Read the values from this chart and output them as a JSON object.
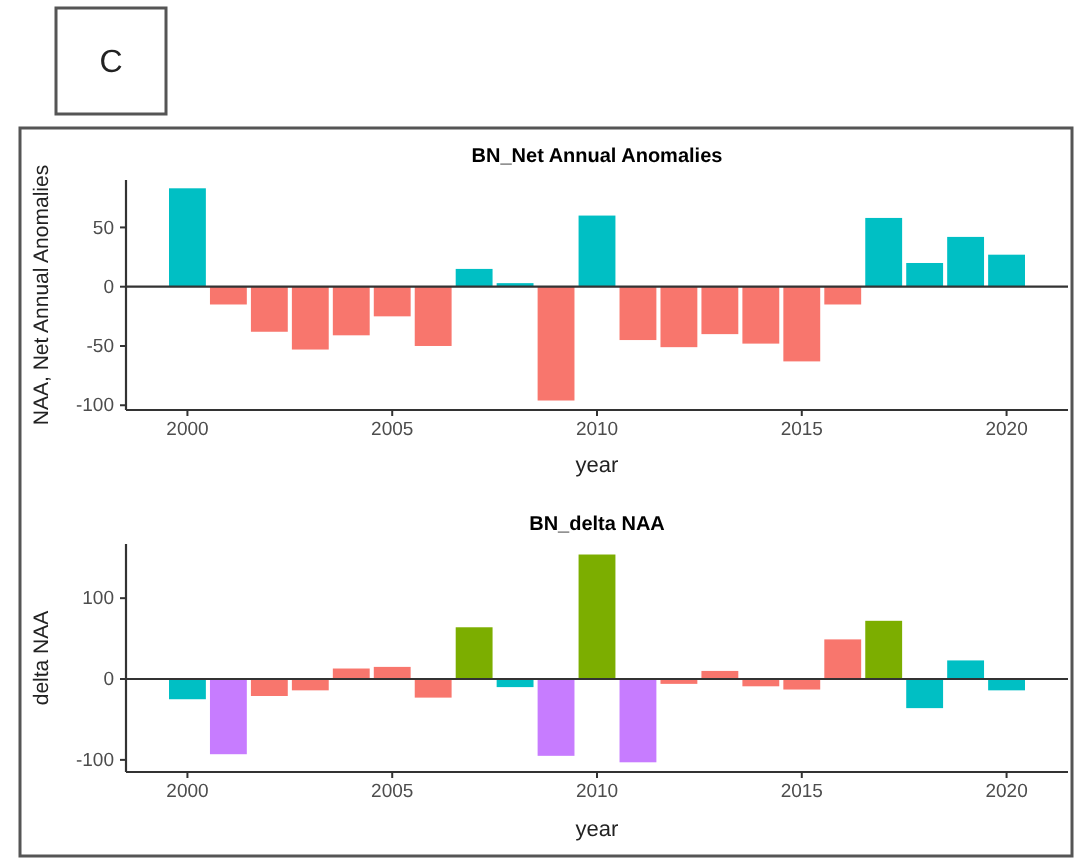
{
  "chart_data": [
    {
      "type": "bar",
      "title": "BN_Net Annual Anomalies",
      "xlabel": "year",
      "ylabel": "NAA, Net Annual Anomalies",
      "annotations": [
        "C"
      ],
      "x": [
        2000,
        2001,
        2002,
        2003,
        2004,
        2005,
        2006,
        2007,
        2008,
        2009,
        2010,
        2011,
        2012,
        2013,
        2014,
        2015,
        2016,
        2017,
        2018,
        2019,
        2020
      ],
      "values": [
        83,
        -15,
        -38,
        -53,
        -41,
        -25,
        -50,
        15,
        3,
        -96,
        60,
        -45,
        -51,
        -40,
        -48,
        -63,
        -15,
        58,
        20,
        42,
        27
      ],
      "colors": [
        "#00bfc4",
        "#f8766d",
        "#f8766d",
        "#f8766d",
        "#f8766d",
        "#f8766d",
        "#f8766d",
        "#00bfc4",
        "#00bfc4",
        "#f8766d",
        "#00bfc4",
        "#f8766d",
        "#f8766d",
        "#f8766d",
        "#f8766d",
        "#f8766d",
        "#f8766d",
        "#00bfc4",
        "#00bfc4",
        "#00bfc4",
        "#00bfc4"
      ],
      "xlim": [
        1998.5,
        2021.5
      ],
      "ylim": [
        -104,
        90
      ],
      "xticks": [
        2000,
        2005,
        2010,
        2015,
        2020
      ],
      "yticks": [
        -100,
        -50,
        0,
        50
      ],
      "ref_lines": [
        {
          "axis": "y",
          "value": 0,
          "color": "#333333"
        }
      ]
    },
    {
      "type": "bar",
      "title": "BN_delta NAA",
      "xlabel": "year",
      "ylabel": "delta NAA",
      "x": [
        2000,
        2001,
        2002,
        2003,
        2004,
        2005,
        2006,
        2007,
        2008,
        2009,
        2010,
        2011,
        2012,
        2013,
        2014,
        2015,
        2016,
        2017,
        2018,
        2019,
        2020
      ],
      "values": [
        -25,
        -93,
        -21,
        -14,
        13,
        15,
        -23,
        64,
        -10,
        -95,
        154,
        -103,
        -6,
        10,
        -9,
        -13,
        49,
        72,
        -36,
        23,
        -14
      ],
      "colors": [
        "#00bfc4",
        "#c77cff",
        "#f8766d",
        "#f8766d",
        "#f8766d",
        "#f8766d",
        "#f8766d",
        "#7cae00",
        "#00bfc4",
        "#c77cff",
        "#7cae00",
        "#c77cff",
        "#f8766d",
        "#f8766d",
        "#f8766d",
        "#f8766d",
        "#f8766d",
        "#7cae00",
        "#00bfc4",
        "#00bfc4",
        "#00bfc4"
      ],
      "xlim": [
        1998.5,
        2021.5
      ],
      "ylim": [
        -115,
        167
      ],
      "xticks": [
        2000,
        2005,
        2010,
        2015,
        2020
      ],
      "yticks": [
        -100,
        0,
        100
      ],
      "ref_lines": [
        {
          "axis": "y",
          "value": 0,
          "color": "#333333"
        }
      ]
    }
  ]
}
